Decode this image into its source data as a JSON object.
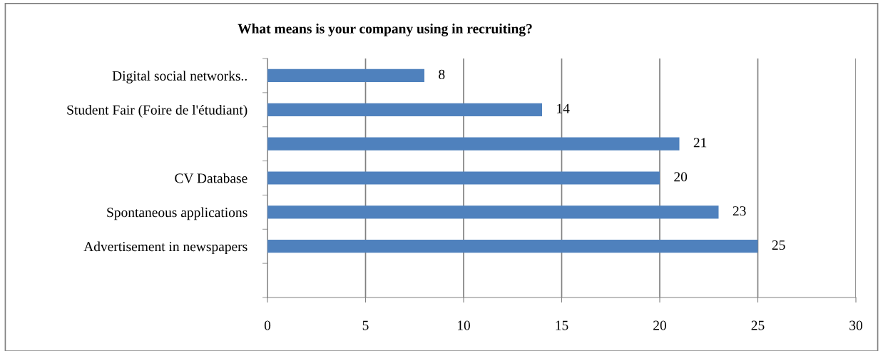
{
  "chart_data": {
    "type": "bar",
    "orientation": "horizontal",
    "title": "What means is your company using in recruiting?",
    "categories": [
      "Digital social networks..",
      "Student Fair (Foire de l'étudiant)",
      null,
      "CV Database",
      "Spontaneous applications",
      "Advertisement in newspapers",
      null
    ],
    "values": [
      8,
      14,
      21,
      20,
      23,
      25,
      null
    ],
    "color": "#4f81bd",
    "xlim": [
      0,
      30
    ],
    "xticks": [
      0,
      5,
      10,
      15,
      20,
      25,
      30
    ],
    "grid": "x",
    "data_labels": true
  }
}
